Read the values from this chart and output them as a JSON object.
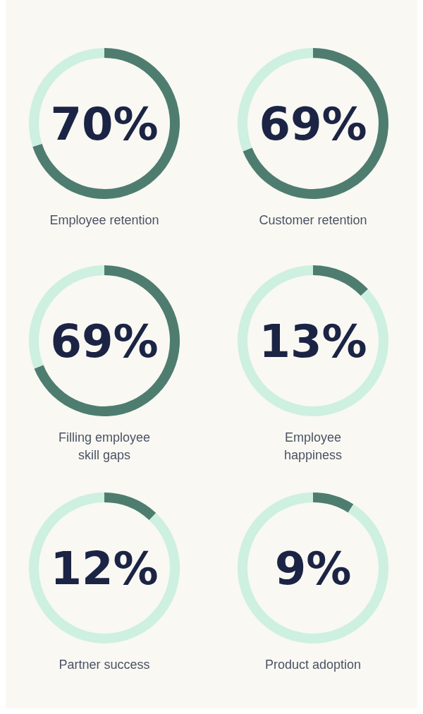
{
  "chart_data": [
    {
      "type": "donut",
      "title": "Employee retention",
      "categories": [
        null,
        null
      ],
      "values": [
        70,
        30
      ],
      "colors": [
        "#4e7d70",
        "#cdf0e0"
      ],
      "annotations": [
        "70%"
      ]
    },
    {
      "type": "donut",
      "title": "Customer retention",
      "categories": [
        null,
        null
      ],
      "values": [
        69,
        31
      ],
      "colors": [
        "#4e7d70",
        "#cdf0e0"
      ],
      "annotations": [
        "69%"
      ]
    },
    {
      "type": "donut",
      "title": "Filling employee\nskill gaps",
      "categories": [
        null,
        null
      ],
      "values": [
        69,
        31
      ],
      "colors": [
        "#4e7d70",
        "#cdf0e0"
      ],
      "annotations": [
        "69%"
      ]
    },
    {
      "type": "donut",
      "title": "Employee\nhappiness",
      "categories": [
        null,
        null
      ],
      "values": [
        13,
        87
      ],
      "colors": [
        "#4e7d70",
        "#cdf0e0"
      ],
      "annotations": [
        "13%"
      ]
    },
    {
      "type": "donut",
      "title": "Partner success",
      "categories": [
        null,
        null
      ],
      "values": [
        12,
        88
      ],
      "colors": [
        "#4e7d70",
        "#cdf0e0"
      ],
      "annotations": [
        "12%"
      ]
    },
    {
      "type": "donut",
      "title": "Product adoption",
      "categories": [
        null,
        null
      ],
      "values": [
        9,
        91
      ],
      "colors": [
        "#4e7d70",
        "#cdf0e0"
      ],
      "annotations": [
        "9%"
      ]
    }
  ]
}
